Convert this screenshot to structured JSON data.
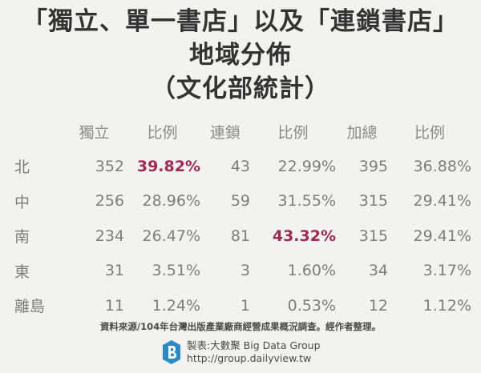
{
  "chart_data": {
    "type": "table",
    "title": [
      "「獨立、單一書店」以及「連鎖書店」",
      "地域分佈",
      "（文化部統計）"
    ],
    "columns": [
      "",
      "獨立",
      "比例",
      "連鎖",
      "比例",
      "加總",
      "比例"
    ],
    "rows": [
      {
        "region": "北",
        "independent": "352",
        "independent_pct": "39.82%",
        "chain": "43",
        "chain_pct": "22.99%",
        "total": "395",
        "total_pct": "36.88%"
      },
      {
        "region": "中",
        "independent": "256",
        "independent_pct": "28.96%",
        "chain": "59",
        "chain_pct": "31.55%",
        "total": "315",
        "total_pct": "29.41%"
      },
      {
        "region": "南",
        "independent": "234",
        "independent_pct": "26.47%",
        "chain": "81",
        "chain_pct": "43.32%",
        "total": "315",
        "total_pct": "29.41%"
      },
      {
        "region": "東",
        "independent": "31",
        "independent_pct": "3.51%",
        "chain": "3",
        "chain_pct": "1.60%",
        "total": "34",
        "total_pct": "3.17%"
      },
      {
        "region": "離島",
        "independent": "11",
        "independent_pct": "1.24%",
        "chain": "1",
        "chain_pct": "0.53%",
        "total": "12",
        "total_pct": "1.12%"
      }
    ],
    "highlights": [
      {
        "row": 0,
        "col": "independent_pct"
      },
      {
        "row": 2,
        "col": "chain_pct"
      }
    ],
    "highlight_color": "#9e2a55"
  },
  "footer": {
    "source": "資料來源/104年台灣出版產業廠商經營成果概況調查。經作者整理。",
    "maker_line": "製表:大數聚 Big Data Group",
    "url": "http://group.dailyview.tw",
    "logo_icon": "bigdata-group-logo"
  }
}
